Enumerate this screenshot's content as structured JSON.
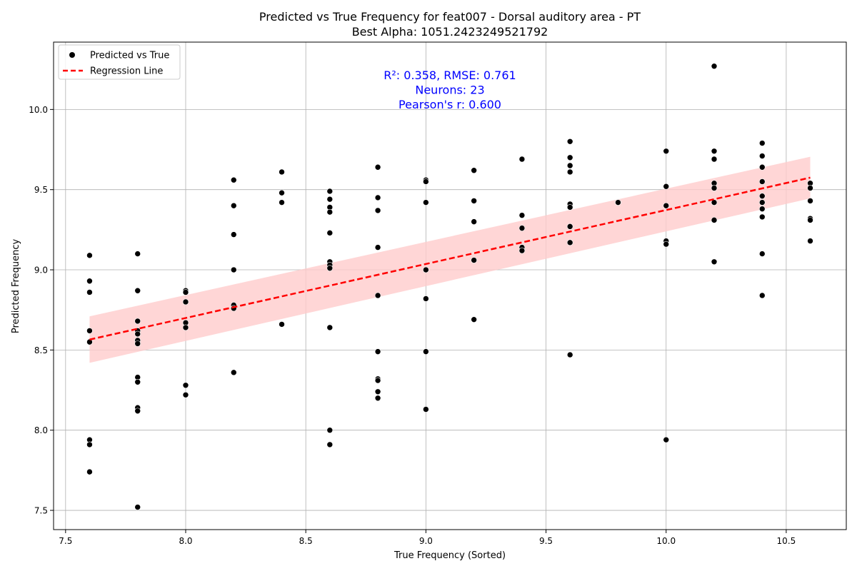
{
  "chart_data": {
    "type": "scatter",
    "title": "Predicted vs True Frequency for feat007 - Dorsal auditory area - PT",
    "subtitle": "Best Alpha: 1051.2423249521792",
    "xlabel": "True Frequency (Sorted)",
    "ylabel": "Predicted Frequency",
    "xlim": [
      7.45,
      10.75
    ],
    "ylim": [
      7.38,
      10.42
    ],
    "xticks": [
      7.5,
      8.0,
      8.5,
      9.0,
      9.5,
      10.0,
      10.5
    ],
    "xtick_labels": [
      "7.5",
      "8.0",
      "8.5",
      "9.0",
      "9.5",
      "10.0",
      "10.5"
    ],
    "yticks": [
      7.5,
      8.0,
      8.5,
      9.0,
      9.5,
      10.0
    ],
    "ytick_labels": [
      "7.5",
      "8.0",
      "8.5",
      "9.0",
      "9.5",
      "10.0"
    ],
    "grid": true,
    "legend_position": "top-left",
    "legend": [
      {
        "label": "Predicted vs True",
        "marker": "dot",
        "color": "#000000"
      },
      {
        "label": "Regression Line",
        "marker": "dashed-line",
        "color": "#ff0000"
      }
    ],
    "annotations": [
      "R²: 0.358, RMSE: 0.761",
      "Neurons: 23",
      "Pearson's r: 0.600"
    ],
    "annotation_color": "#0000ff",
    "point_color": "#000000",
    "line_color": "#ff0000",
    "band_color": "#ffcccc",
    "regression": {
      "x": [
        7.6,
        10.6
      ],
      "y": [
        8.565,
        9.575
      ]
    },
    "confidence_band": {
      "x": [
        7.6,
        10.6
      ],
      "lower": [
        8.42,
        9.445
      ],
      "upper": [
        8.71,
        9.705
      ]
    },
    "series": [
      {
        "name": "Predicted vs True",
        "points": [
          [
            7.6,
            9.09
          ],
          [
            7.6,
            8.93
          ],
          [
            7.6,
            8.86
          ],
          [
            7.6,
            8.62
          ],
          [
            7.6,
            8.55
          ],
          [
            7.6,
            7.94
          ],
          [
            7.6,
            7.91
          ],
          [
            7.6,
            7.74
          ],
          [
            7.8,
            9.1
          ],
          [
            7.8,
            8.87
          ],
          [
            7.8,
            8.68
          ],
          [
            7.8,
            8.62
          ],
          [
            7.8,
            8.6
          ],
          [
            7.8,
            8.56
          ],
          [
            7.8,
            8.54
          ],
          [
            7.8,
            8.33
          ],
          [
            7.8,
            8.3
          ],
          [
            7.8,
            8.14
          ],
          [
            7.8,
            8.12
          ],
          [
            7.8,
            7.52
          ],
          [
            8.0,
            8.87
          ],
          [
            8.0,
            8.86
          ],
          [
            8.0,
            8.8
          ],
          [
            8.0,
            8.67
          ],
          [
            8.0,
            8.64
          ],
          [
            8.0,
            8.28
          ],
          [
            8.0,
            8.22
          ],
          [
            8.2,
            9.56
          ],
          [
            8.2,
            9.4
          ],
          [
            8.2,
            9.22
          ],
          [
            8.2,
            9.0
          ],
          [
            8.2,
            8.78
          ],
          [
            8.2,
            8.76
          ],
          [
            8.2,
            8.36
          ],
          [
            8.4,
            9.61
          ],
          [
            8.4,
            9.48
          ],
          [
            8.4,
            9.42
          ],
          [
            8.4,
            8.66
          ],
          [
            8.6,
            9.49
          ],
          [
            8.6,
            9.44
          ],
          [
            8.6,
            9.39
          ],
          [
            8.6,
            9.36
          ],
          [
            8.6,
            9.23
          ],
          [
            8.6,
            9.05
          ],
          [
            8.6,
            9.03
          ],
          [
            8.6,
            9.01
          ],
          [
            8.6,
            8.64
          ],
          [
            8.6,
            8.0
          ],
          [
            8.6,
            7.91
          ],
          [
            8.8,
            9.64
          ],
          [
            8.8,
            9.45
          ],
          [
            8.8,
            9.37
          ],
          [
            8.8,
            9.14
          ],
          [
            8.8,
            8.84
          ],
          [
            8.8,
            8.49
          ],
          [
            8.8,
            8.32
          ],
          [
            8.8,
            8.31
          ],
          [
            8.8,
            8.24
          ],
          [
            8.8,
            8.2
          ],
          [
            9.0,
            9.56
          ],
          [
            9.0,
            9.55
          ],
          [
            9.0,
            9.42
          ],
          [
            9.0,
            9.0
          ],
          [
            9.0,
            8.82
          ],
          [
            9.0,
            8.49
          ],
          [
            9.0,
            8.13
          ],
          [
            9.2,
            9.62
          ],
          [
            9.2,
            9.43
          ],
          [
            9.2,
            9.3
          ],
          [
            9.2,
            9.06
          ],
          [
            9.2,
            8.69
          ],
          [
            9.4,
            9.69
          ],
          [
            9.4,
            9.34
          ],
          [
            9.4,
            9.26
          ],
          [
            9.4,
            9.14
          ],
          [
            9.4,
            9.12
          ],
          [
            9.6,
            9.8
          ],
          [
            9.6,
            9.7
          ],
          [
            9.6,
            9.65
          ],
          [
            9.6,
            9.61
          ],
          [
            9.6,
            9.41
          ],
          [
            9.6,
            9.39
          ],
          [
            9.6,
            9.27
          ],
          [
            9.6,
            9.17
          ],
          [
            9.6,
            8.47
          ],
          [
            9.8,
            9.42
          ],
          [
            10.0,
            9.74
          ],
          [
            10.0,
            9.52
          ],
          [
            10.0,
            9.4
          ],
          [
            10.0,
            9.18
          ],
          [
            10.0,
            9.16
          ],
          [
            10.0,
            7.94
          ],
          [
            10.2,
            10.27
          ],
          [
            10.2,
            9.74
          ],
          [
            10.2,
            9.69
          ],
          [
            10.2,
            9.54
          ],
          [
            10.2,
            9.51
          ],
          [
            10.2,
            9.42
          ],
          [
            10.2,
            9.31
          ],
          [
            10.2,
            9.05
          ],
          [
            10.4,
            9.79
          ],
          [
            10.4,
            9.71
          ],
          [
            10.4,
            9.64
          ],
          [
            10.4,
            9.55
          ],
          [
            10.4,
            9.46
          ],
          [
            10.4,
            9.42
          ],
          [
            10.4,
            9.38
          ],
          [
            10.4,
            9.33
          ],
          [
            10.4,
            9.1
          ],
          [
            10.4,
            8.84
          ],
          [
            10.6,
            9.54
          ],
          [
            10.6,
            9.51
          ],
          [
            10.6,
            9.43
          ],
          [
            10.6,
            9.32
          ],
          [
            10.6,
            9.31
          ],
          [
            10.6,
            9.18
          ]
        ]
      }
    ]
  }
}
